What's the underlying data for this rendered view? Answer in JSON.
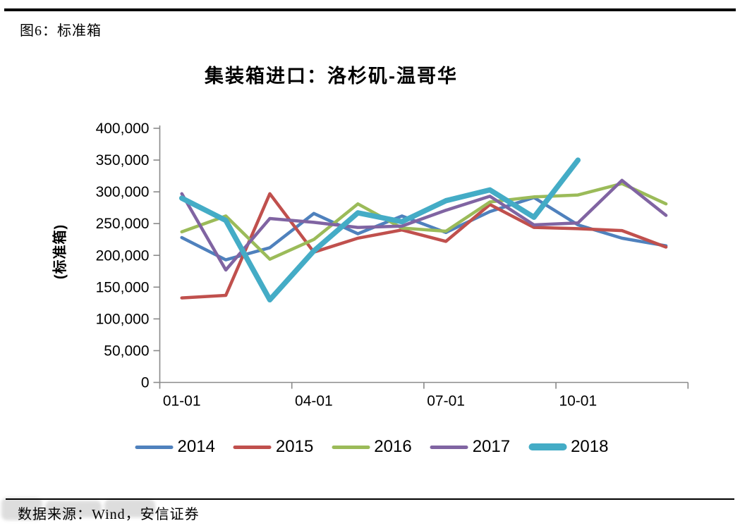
{
  "figure_caption": "图6：标准箱",
  "chart": {
    "title": "集装箱进口：洛杉矶-温哥华",
    "y_axis_title": "(标准箱)",
    "y_tick_labels": [
      "400,000",
      "350,000",
      "300,000",
      "250,000",
      "200,000",
      "150,000",
      "100,000",
      "50,000",
      "0"
    ],
    "x_tick_labels": [
      "01-01",
      "04-01",
      "07-01",
      "10-01"
    ]
  },
  "chart_data": {
    "type": "line",
    "title": "集装箱进口：洛杉矶-温哥华",
    "ylabel": "(标准箱)",
    "ylim": [
      0,
      400000
    ],
    "y_tick_step": 50000,
    "grid": false,
    "legend_position": "bottom",
    "categories": [
      "01-01",
      "02-01",
      "03-01",
      "04-01",
      "05-01",
      "06-01",
      "07-01",
      "08-01",
      "09-01",
      "10-01",
      "11-01",
      "12-01"
    ],
    "x_tick_labels_shown": [
      "01-01",
      "04-01",
      "07-01",
      "10-01"
    ],
    "series": [
      {
        "name": "2014",
        "color": "#4F81BD",
        "thick": false,
        "values": [
          228000,
          193000,
          212000,
          266000,
          234000,
          262000,
          236000,
          269000,
          291000,
          248000,
          227000,
          215000
        ]
      },
      {
        "name": "2015",
        "color": "#C0504D",
        "thick": false,
        "values": [
          133000,
          137000,
          297000,
          205000,
          227000,
          240000,
          222000,
          280000,
          244000,
          242000,
          239000,
          213000
        ]
      },
      {
        "name": "2016",
        "color": "#9BBB59",
        "thick": false,
        "values": [
          237000,
          262000,
          194000,
          225000,
          281000,
          243000,
          238000,
          284000,
          292000,
          295000,
          313000,
          281000
        ]
      },
      {
        "name": "2017",
        "color": "#8064A2",
        "thick": false,
        "values": [
          297000,
          177000,
          258000,
          252000,
          244000,
          246000,
          271000,
          293000,
          248000,
          251000,
          318000,
          263000
        ]
      },
      {
        "name": "2018",
        "color": "#44ACC6",
        "thick": true,
        "values": [
          290000,
          255000,
          130000,
          207000,
          267000,
          253000,
          286000,
          303000,
          260000,
          350000
        ]
      }
    ]
  },
  "footer": {
    "source": "数据来源：Wind，安信证券"
  },
  "style": {
    "axis_color": "#8a8a8a",
    "text_color": "#000000"
  }
}
